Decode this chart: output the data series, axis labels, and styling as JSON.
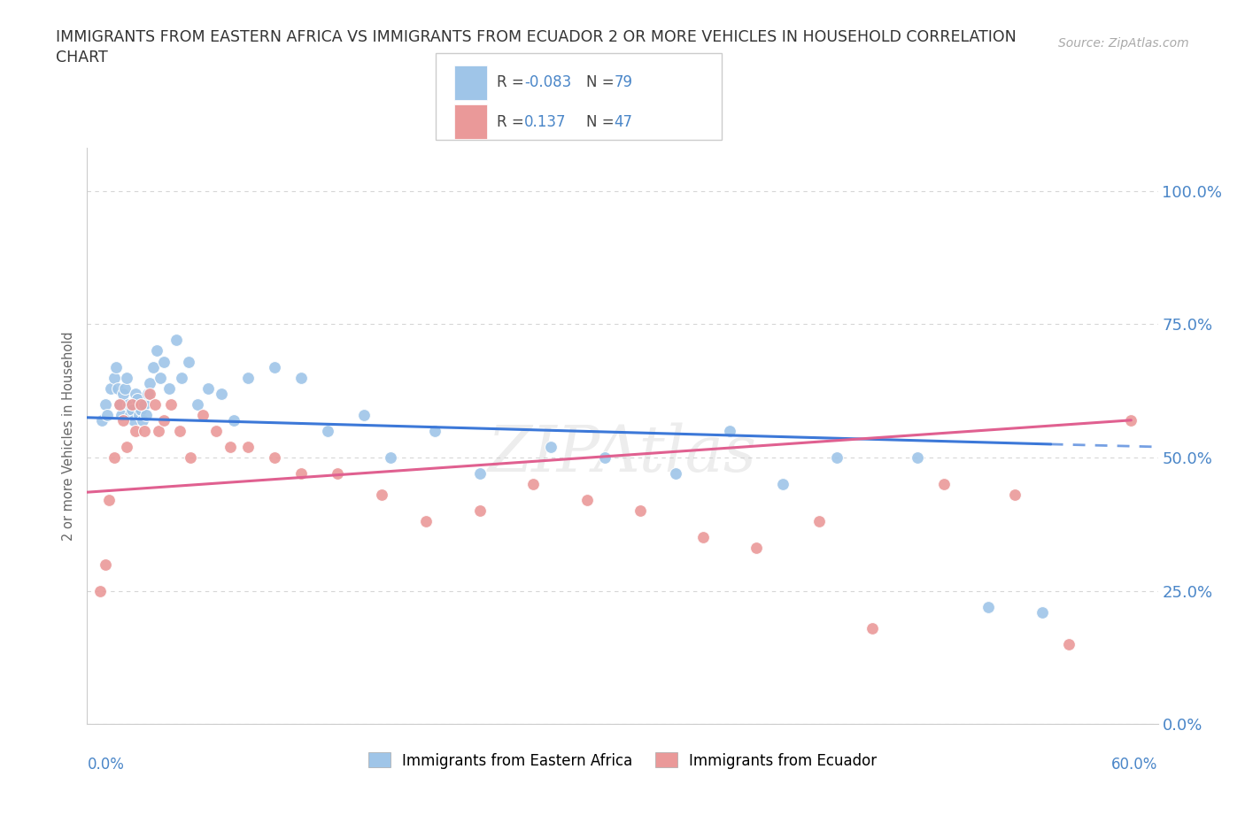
{
  "title": "IMMIGRANTS FROM EASTERN AFRICA VS IMMIGRANTS FROM ECUADOR 2 OR MORE VEHICLES IN HOUSEHOLD CORRELATION\nCHART",
  "source": "Source: ZipAtlas.com",
  "ylabel": "2 or more Vehicles in Household",
  "ytick_values": [
    0,
    25,
    50,
    75,
    100
  ],
  "xlim": [
    0,
    60
  ],
  "ylim": [
    0,
    108
  ],
  "color_blue": "#9fc5e8",
  "color_pink": "#ea9999",
  "color_line_blue": "#3c78d8",
  "color_line_pink": "#e06090",
  "color_label": "#4a86c8",
  "blue_x": [
    0.8,
    1.0,
    1.1,
    1.3,
    1.5,
    1.6,
    1.7,
    1.8,
    1.9,
    2.0,
    2.1,
    2.2,
    2.3,
    2.4,
    2.5,
    2.6,
    2.7,
    2.8,
    2.9,
    3.0,
    3.1,
    3.2,
    3.3,
    3.4,
    3.5,
    3.7,
    3.9,
    4.1,
    4.3,
    4.6,
    5.0,
    5.3,
    5.7,
    6.2,
    6.8,
    7.5,
    8.2,
    9.0,
    10.5,
    12.0,
    13.5,
    15.5,
    17.0,
    19.5,
    22.0,
    26.0,
    29.0,
    33.0,
    36.0,
    39.0,
    42.0,
    46.5,
    50.5,
    53.5
  ],
  "blue_y": [
    57,
    60,
    58,
    63,
    65,
    67,
    63,
    60,
    58,
    62,
    63,
    65,
    60,
    58,
    59,
    57,
    62,
    61,
    58,
    59,
    57,
    60,
    58,
    62,
    64,
    67,
    70,
    65,
    68,
    63,
    72,
    65,
    68,
    60,
    63,
    62,
    57,
    65,
    67,
    65,
    55,
    58,
    50,
    55,
    47,
    52,
    50,
    47,
    55,
    45,
    50,
    50,
    22,
    21
  ],
  "pink_x": [
    0.7,
    1.0,
    1.2,
    1.5,
    1.8,
    2.0,
    2.2,
    2.5,
    2.7,
    3.0,
    3.2,
    3.5,
    3.8,
    4.0,
    4.3,
    4.7,
    5.2,
    5.8,
    6.5,
    7.2,
    8.0,
    9.0,
    10.5,
    12.0,
    14.0,
    16.5,
    19.0,
    22.0,
    25.0,
    28.0,
    31.0,
    34.5,
    37.5,
    41.0,
    44.0,
    48.0,
    52.0,
    55.0,
    58.5
  ],
  "pink_y": [
    25,
    30,
    42,
    50,
    60,
    57,
    52,
    60,
    55,
    60,
    55,
    62,
    60,
    55,
    57,
    60,
    55,
    50,
    58,
    55,
    52,
    52,
    50,
    47,
    47,
    43,
    38,
    40,
    45,
    42,
    40,
    35,
    33,
    38,
    18,
    45,
    43,
    15,
    57
  ],
  "blue_line_x0": 0.0,
  "blue_line_y0": 57.5,
  "blue_line_x1": 54.0,
  "blue_line_y1": 52.5,
  "blue_dash_x0": 54.0,
  "blue_dash_y0": 52.5,
  "blue_dash_x1": 60.0,
  "blue_dash_y1": 52.0,
  "pink_line_x0": 0.0,
  "pink_line_y0": 43.5,
  "pink_line_x1": 58.5,
  "pink_line_y1": 57.0
}
